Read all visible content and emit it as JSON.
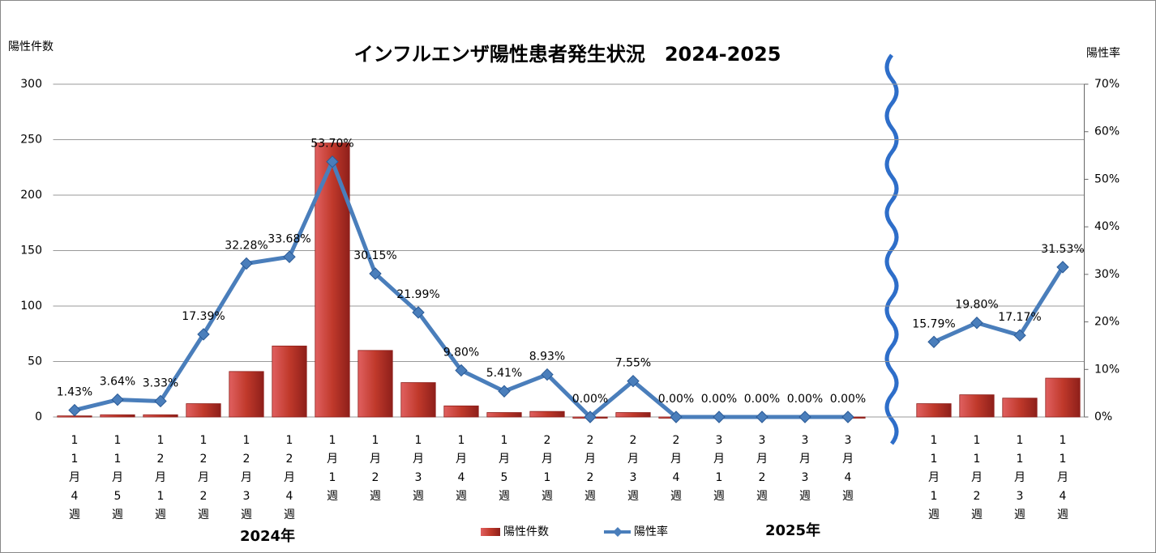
{
  "chart_data": {
    "type": "bar",
    "title": "インフルエンザ陽性患者発生状況　2024-2025",
    "y_label": "陽性件数",
    "y2_label": "陽性率",
    "annotations": [
      {
        "text": "2024年",
        "color": "#e8141c"
      },
      {
        "text": "2025年",
        "color": "#1f3d6e"
      }
    ],
    "categories": [
      "11月4週",
      "11月5週",
      "12月1週",
      "12月2週",
      "12月3週",
      "12月4週",
      "1月1週",
      "1月2週",
      "1月3週",
      "1月4週",
      "1月5週",
      "2月1週",
      "2月2週",
      "2月3週",
      "2月4週",
      "3月1週",
      "3月2週",
      "3月3週",
      "3月4週",
      null,
      "11月1週",
      "11月2週",
      "11月3週",
      "11月4週"
    ],
    "series": [
      {
        "name": "陽性件数",
        "type": "bar",
        "color": "#c0392b",
        "values": [
          1,
          2,
          2,
          12,
          41,
          64,
          247,
          60,
          31,
          10,
          4,
          5,
          0,
          4,
          0,
          0,
          0,
          0,
          0,
          null,
          12,
          20,
          17,
          35
        ]
      },
      {
        "name": "陽性率",
        "type": "line",
        "axis": "y2",
        "color": "#4a7ebb",
        "values": [
          1.43,
          3.64,
          3.33,
          17.39,
          32.28,
          33.68,
          53.7,
          30.15,
          21.99,
          9.8,
          5.41,
          8.93,
          0.0,
          7.55,
          0.0,
          0.0,
          0.0,
          0.0,
          0.0,
          null,
          15.79,
          19.8,
          17.17,
          31.53
        ],
        "value_labels": [
          "1.43%",
          "3.64%",
          "3.33%",
          "17.39%",
          "32.28%",
          "33.68%",
          "53.70%",
          "30.15%",
          "21.99%",
          "9.80%",
          "5.41%",
          "8.93%",
          "0.00%",
          "7.55%",
          "0.00%",
          "0.00%",
          "0.00%",
          "0.00%",
          "0.00%",
          null,
          "15.79%",
          "19.80%",
          "17.17%",
          "31.53%"
        ]
      }
    ],
    "ylim": [
      0,
      300
    ],
    "yticks": [
      0,
      50,
      100,
      150,
      200,
      250,
      300
    ],
    "y2lim": [
      0,
      70
    ],
    "y2ticks": [
      {
        "value": 0,
        "label": "0%"
      },
      {
        "value": 10,
        "label": "10%"
      },
      {
        "value": 20,
        "label": "20%"
      },
      {
        "value": 30,
        "label": "30%"
      },
      {
        "value": 40,
        "label": "40%"
      },
      {
        "value": 50,
        "label": "50%"
      },
      {
        "value": 60,
        "label": "60%"
      },
      {
        "value": 70,
        "label": "70%"
      }
    ],
    "grid": true
  }
}
